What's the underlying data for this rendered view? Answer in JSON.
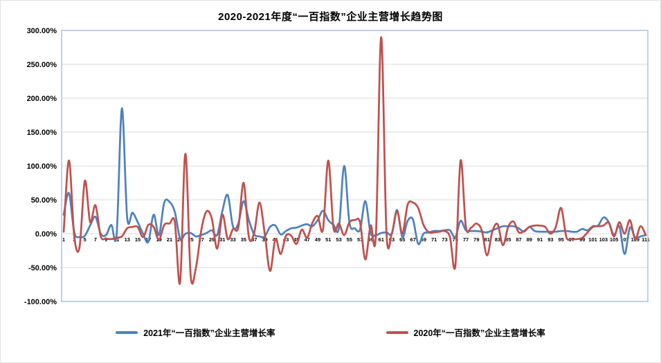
{
  "chart_data": {
    "type": "line",
    "title": "2020-2021年度“一百指数”企业主营增长趋势图",
    "smooth": true,
    "grid": true,
    "legend_position": "bottom",
    "x_count": 111,
    "x_start": 1,
    "x_step": 1,
    "x_tick_labels": [
      "1",
      "3",
      "5",
      "7",
      "9",
      "11",
      "13",
      "15",
      "17",
      "19",
      "21",
      "23",
      "25",
      "27",
      "29",
      "31",
      "33",
      "35",
      "37",
      "39",
      "41",
      "43",
      "45",
      "47",
      "49",
      "51",
      "53",
      "55",
      "57",
      "59",
      "61",
      "63",
      "65",
      "67",
      "69",
      "71",
      "73",
      "75",
      "77",
      "79",
      "81",
      "83",
      "85",
      "87",
      "89",
      "91",
      "93",
      "95",
      "97",
      "99",
      "101",
      "103",
      "105",
      "107",
      "109",
      "111"
    ],
    "ylim": [
      -100,
      300
    ],
    "y_tick_step": 50,
    "y_tick_labels": [
      "300.00%",
      "250.00%",
      "200.00%",
      "150.00%",
      "100.00%",
      "50.00%",
      "0.00%",
      "-50.00%",
      "-100.00%"
    ],
    "y_tick_values": [
      300,
      250,
      200,
      150,
      100,
      50,
      0,
      -50,
      -100
    ],
    "grid_color": "#d9d9d9",
    "plot_border_color": "#a7c3e2",
    "series": [
      {
        "name": "2021年“一百指数”企业主营增长率",
        "color": "#4F81BD",
        "values": [
          28,
          60,
          2,
          -5,
          -3,
          12,
          25,
          0,
          -2,
          13,
          -1,
          185,
          24,
          31,
          17,
          0,
          -12,
          28,
          -2,
          46,
          47,
          32,
          -7,
          0,
          1,
          -4,
          -2,
          1,
          5,
          -2,
          34,
          57,
          10,
          15,
          48,
          20,
          -1,
          -4,
          -4,
          10,
          12,
          -1,
          4,
          8,
          9,
          12,
          14,
          11,
          20,
          34,
          20,
          13,
          8,
          100,
          16,
          8,
          6,
          48,
          1,
          -2,
          1,
          2,
          0,
          35,
          -5,
          19,
          21,
          -15,
          0,
          2,
          4,
          4,
          5,
          5,
          -5,
          19,
          5,
          4,
          4,
          3,
          2,
          5,
          8,
          11,
          11,
          11,
          8,
          3,
          10,
          4,
          3,
          3,
          3,
          3,
          4,
          4,
          3,
          3,
          7,
          5,
          11,
          12,
          24,
          17,
          -2,
          11,
          -30,
          9,
          -6,
          -4,
          -2
        ]
      },
      {
        "name": "2020年“一百指数”企业主营增长率",
        "color": "#C0504D",
        "values": [
          3,
          108,
          -4,
          -20,
          78,
          17,
          42,
          -4,
          -7,
          -8,
          -6,
          -4,
          8,
          10,
          10,
          -5,
          13,
          10,
          -9,
          13,
          15,
          17,
          -72,
          118,
          -62,
          -50,
          5,
          33,
          22,
          -22,
          28,
          -8,
          7,
          9,
          75,
          -5,
          1,
          46,
          0,
          -55,
          -8,
          -30,
          -3,
          -3,
          -15,
          6,
          -6,
          16,
          26,
          6,
          108,
          8,
          15,
          -2,
          17,
          20,
          17,
          -38,
          12,
          -2,
          290,
          1,
          0,
          33,
          0,
          43,
          46,
          38,
          13,
          2,
          2,
          3,
          4,
          -5,
          -48,
          108,
          10,
          9,
          15,
          5,
          -32,
          3,
          14,
          -17,
          10,
          18,
          2,
          4,
          10,
          12,
          12,
          10,
          0,
          10,
          38,
          -5,
          -8,
          -8,
          -6,
          2,
          10,
          11,
          12,
          16,
          -4,
          17,
          0,
          20,
          -8,
          11,
          -2
        ]
      }
    ]
  }
}
